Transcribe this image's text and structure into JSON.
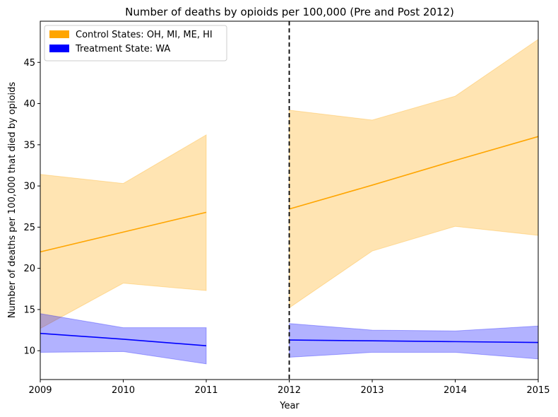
{
  "chart_data": {
    "type": "line",
    "title": "Number of deaths by opioids per 100,000 (Pre and Post 2012)",
    "xlabel": "Year",
    "ylabel": "Number of deaths per 100,000 that died by opioids",
    "xlim": [
      2009,
      2015
    ],
    "ylim": [
      6.5,
      50
    ],
    "x_ticks": [
      "2009",
      "2010",
      "2011",
      "2012",
      "2013",
      "2014",
      "2015"
    ],
    "y_ticks": [
      "10",
      "15",
      "20",
      "25",
      "30",
      "35",
      "40",
      "45"
    ],
    "grid": false,
    "legend_position": "top-left",
    "vertical_line": {
      "x": 2012,
      "style": "dashed",
      "color": "#000000"
    },
    "series": [
      {
        "name": "Control States: OH, MI, ME, HI",
        "color": "#FFA500",
        "segments": [
          {
            "x": [
              2009,
              2010,
              2011
            ],
            "line": [
              22.0,
              24.4,
              26.8
            ],
            "upper": [
              31.4,
              30.3,
              36.2
            ],
            "lower": [
              12.7,
              18.2,
              17.3
            ]
          },
          {
            "x": [
              2012,
              2013,
              2014,
              2015
            ],
            "line": [
              27.2,
              30.1,
              33.1,
              36.0
            ],
            "upper": [
              39.2,
              38.0,
              40.9,
              47.8
            ],
            "lower": [
              15.2,
              22.1,
              25.1,
              24.0
            ]
          }
        ]
      },
      {
        "name": "Treatment State: WA",
        "color": "#0000FF",
        "segments": [
          {
            "x": [
              2009,
              2010,
              2011
            ],
            "line": [
              12.1,
              11.4,
              10.6
            ],
            "upper": [
              14.5,
              12.8,
              12.8
            ],
            "lower": [
              9.8,
              9.9,
              8.4
            ]
          },
          {
            "x": [
              2012,
              2013,
              2014,
              2015
            ],
            "line": [
              11.3,
              11.2,
              11.1,
              11.0
            ],
            "upper": [
              13.3,
              12.5,
              12.4,
              13.0
            ],
            "lower": [
              9.2,
              9.8,
              9.8,
              9.0
            ]
          }
        ]
      }
    ]
  }
}
